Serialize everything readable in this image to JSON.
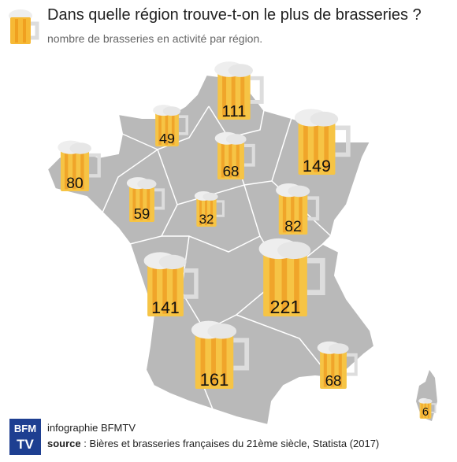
{
  "header": {
    "title": "Dans quelle région trouve-t-on le plus de brasseries ?",
    "subtitle": "nombre de brasseries en activité par région."
  },
  "regions": [
    {
      "value": 111
    },
    {
      "value": 49
    },
    {
      "value": 149
    },
    {
      "value": 80
    },
    {
      "value": 68
    },
    {
      "value": 59
    },
    {
      "value": 32
    },
    {
      "value": 82
    },
    {
      "value": 141
    },
    {
      "value": 221
    },
    {
      "value": 161
    },
    {
      "value": 68
    },
    {
      "value": 6
    }
  ],
  "footer": {
    "logo_top": "BFM",
    "logo_bottom": "TV",
    "credit": "infographie BFMTV",
    "source_label": "source",
    "source_text": " : Bières et brasseries françaises du 21ème siècle, Statista (2017)"
  }
}
